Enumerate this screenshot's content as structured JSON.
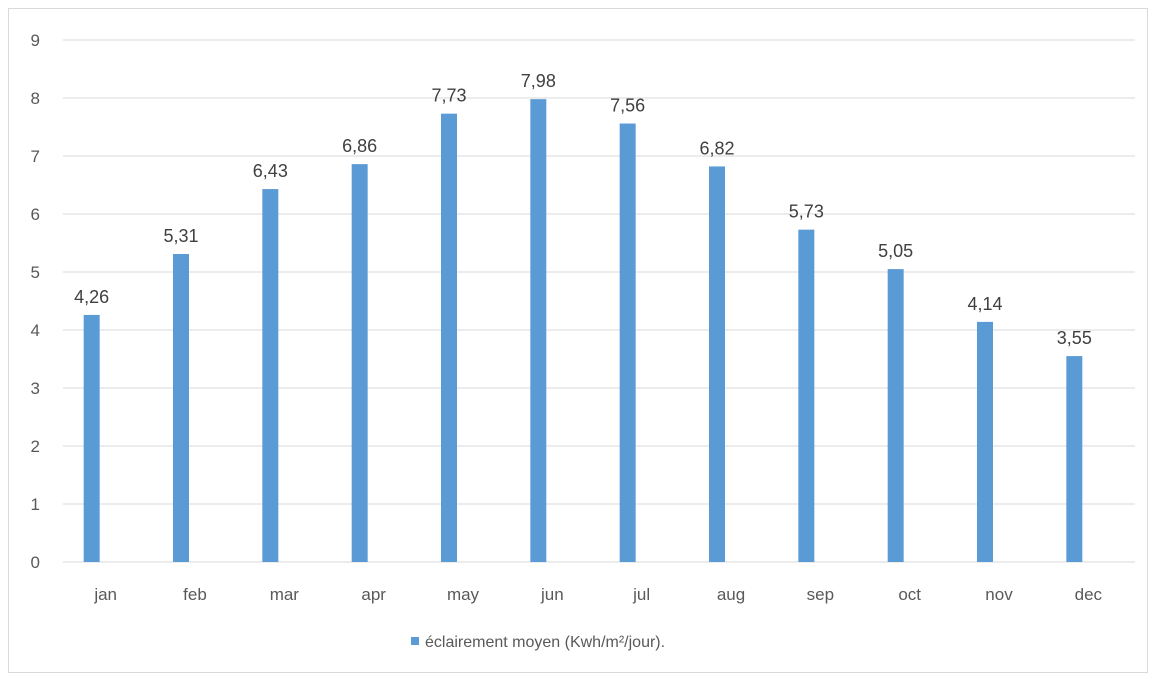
{
  "chart_data": {
    "type": "bar",
    "categories": [
      "jan",
      "feb",
      "mar",
      "apr",
      "may",
      "jun",
      "jul",
      "aug",
      "sep",
      "oct",
      "nov",
      "dec"
    ],
    "series": [
      {
        "name": "éclairement moyen (Kwh/m²/jour).",
        "values": [
          4.26,
          5.31,
          6.43,
          6.86,
          7.73,
          7.98,
          7.56,
          6.82,
          5.73,
          5.05,
          4.14,
          3.55
        ],
        "data_labels": [
          "4,26",
          "5,31",
          "6,43",
          "6,86",
          "7,73",
          "7,98",
          "7,56",
          "6,82",
          "5,73",
          "5,05",
          "4,14",
          "3,55"
        ]
      }
    ],
    "title": "",
    "xlabel": "",
    "ylabel": "",
    "ylim": [
      0,
      9
    ],
    "yticks": [
      "0",
      "1",
      "2",
      "3",
      "4",
      "5",
      "6",
      "7",
      "8",
      "9"
    ],
    "grid": true,
    "legend_position": "bottom",
    "bar_color": "#5b9bd5",
    "grid_color": "#d9d9d9"
  }
}
